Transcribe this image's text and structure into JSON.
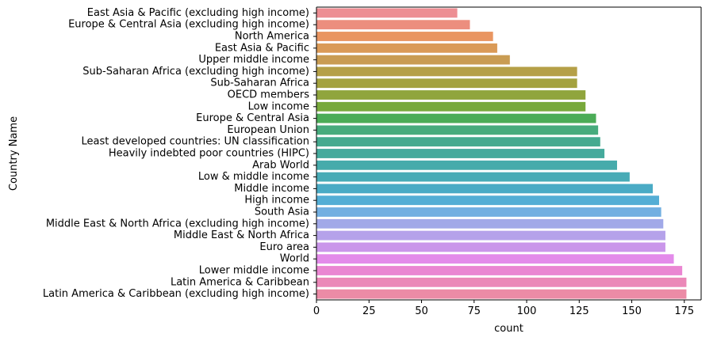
{
  "chart_data": {
    "type": "bar",
    "orientation": "horizontal",
    "xlabel": "count",
    "ylabel": "Country Name",
    "xlim": [
      0,
      183
    ],
    "xticks": [
      0,
      25,
      50,
      75,
      100,
      125,
      150,
      175
    ],
    "grid": false,
    "categories": [
      "East Asia & Pacific (excluding high income)",
      "Europe & Central Asia (excluding high income)",
      "North America",
      "East Asia & Pacific",
      "Upper middle income",
      "Sub-Saharan Africa (excluding high income)",
      "Sub-Saharan Africa",
      "OECD members",
      "Low income",
      "Europe & Central Asia",
      "European Union",
      "Least developed countries: UN classification",
      "Heavily indebted poor countries (HIPC)",
      "Arab World",
      "Low & middle income",
      "Middle income",
      "High income",
      "South Asia",
      "Middle East & North Africa (excluding high income)",
      "Middle East & North Africa",
      "Euro area",
      "World",
      "Lower middle income",
      "Latin America & Caribbean",
      "Latin America & Caribbean (excluding high income)"
    ],
    "values": [
      67,
      73,
      84,
      86,
      92,
      124,
      124,
      128,
      128,
      133,
      134,
      135,
      137,
      143,
      149,
      160,
      163,
      164,
      165,
      166,
      166,
      170,
      174,
      176,
      176
    ],
    "colors": [
      "#ed8e93",
      "#ec8e7e",
      "#e99561",
      "#da9a57",
      "#c99c53",
      "#b5a047",
      "#a4a23f",
      "#90a53d",
      "#78a93b",
      "#4bac57",
      "#47ab7d",
      "#45aa8f",
      "#45aa9c",
      "#46abab",
      "#48abb6",
      "#4aabc5",
      "#54aed5",
      "#72afe1",
      "#a1a9e8",
      "#b5a2ea",
      "#ca96ea",
      "#e38bea",
      "#ea86d2",
      "#eb88b8",
      "#ec8ba6"
    ]
  }
}
